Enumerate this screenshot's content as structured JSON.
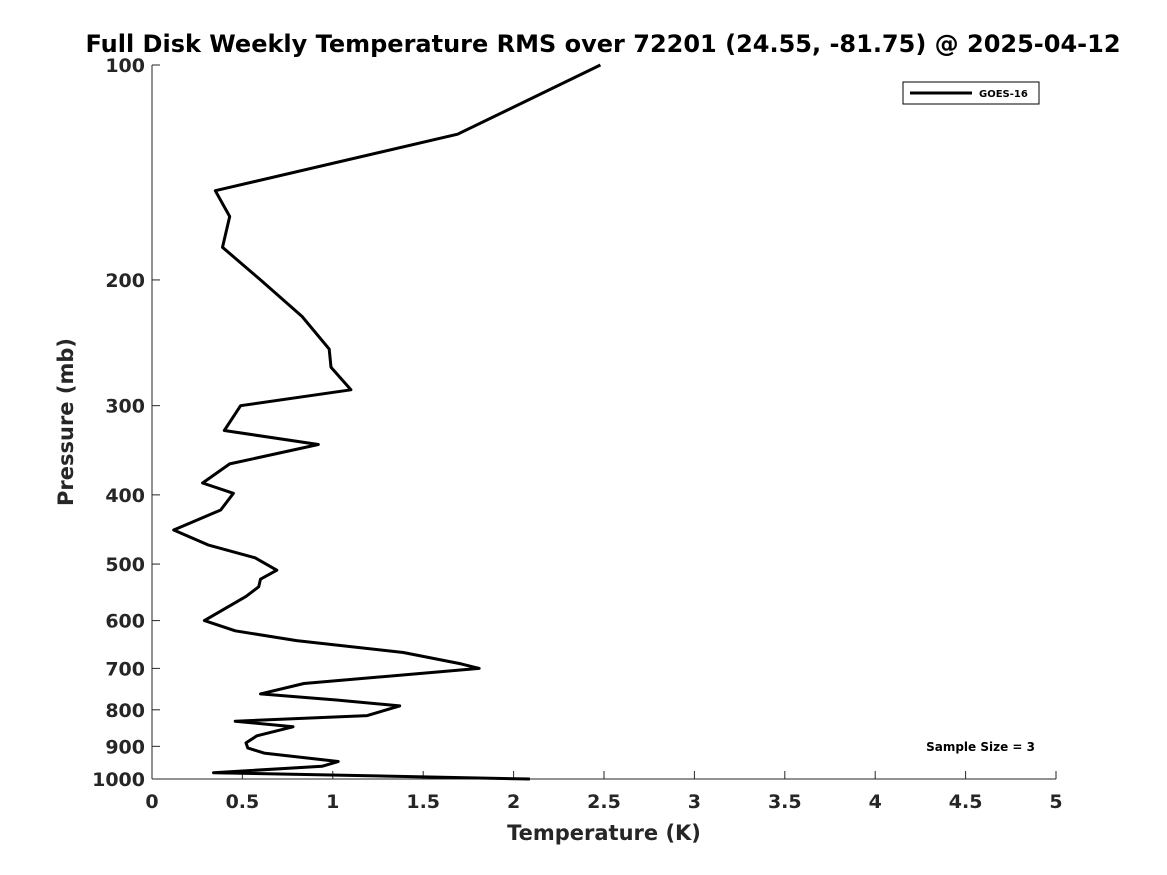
{
  "chart_data": {
    "type": "line",
    "title": "Full Disk Weekly Temperature RMS over 72201 (24.55, -81.75) @ 2025-04-12",
    "xlabel": "Temperature (K)",
    "ylabel": "Pressure (mb)",
    "xlim": [
      0,
      5
    ],
    "ylim": [
      1000,
      100
    ],
    "yscale": "log",
    "y_reversed": true,
    "grid": false,
    "legend_position": "top-right",
    "x_ticks": [
      "0",
      "0.5",
      "1",
      "1.5",
      "2",
      "2.5",
      "3",
      "3.5",
      "4",
      "4.5",
      "5"
    ],
    "y_ticks": [
      "100",
      "200",
      "300",
      "400",
      "500",
      "600",
      "700",
      "800",
      "900",
      "1000"
    ],
    "series": [
      {
        "name": "GOES-16",
        "color": "#000000",
        "points": [
          [
            2.48,
            100
          ],
          [
            1.69,
            125
          ],
          [
            0.35,
            150
          ],
          [
            0.43,
            163
          ],
          [
            0.39,
            180
          ],
          [
            0.6,
            200
          ],
          [
            0.83,
            225
          ],
          [
            0.98,
            250
          ],
          [
            0.99,
            265
          ],
          [
            1.1,
            285
          ],
          [
            0.49,
            300
          ],
          [
            0.4,
            325
          ],
          [
            0.92,
            340
          ],
          [
            0.43,
            362
          ],
          [
            0.28,
            385
          ],
          [
            0.45,
            398
          ],
          [
            0.38,
            420
          ],
          [
            0.12,
            448
          ],
          [
            0.31,
            470
          ],
          [
            0.57,
            490
          ],
          [
            0.69,
            510
          ],
          [
            0.6,
            525
          ],
          [
            0.59,
            538
          ],
          [
            0.52,
            555
          ],
          [
            0.29,
            600
          ],
          [
            0.46,
            620
          ],
          [
            0.8,
            640
          ],
          [
            1.39,
            665
          ],
          [
            1.71,
            690
          ],
          [
            1.81,
            700
          ],
          [
            0.84,
            735
          ],
          [
            0.6,
            760
          ],
          [
            1.02,
            775
          ],
          [
            1.37,
            790
          ],
          [
            1.19,
            815
          ],
          [
            0.46,
            830
          ],
          [
            0.78,
            845
          ],
          [
            0.58,
            870
          ],
          [
            0.52,
            890
          ],
          [
            0.53,
            905
          ],
          [
            0.62,
            920
          ],
          [
            1.03,
            945
          ],
          [
            0.94,
            960
          ],
          [
            0.34,
            980
          ],
          [
            2.09,
            1000
          ]
        ]
      }
    ],
    "annotations": [
      "Sample Size = 3"
    ]
  }
}
